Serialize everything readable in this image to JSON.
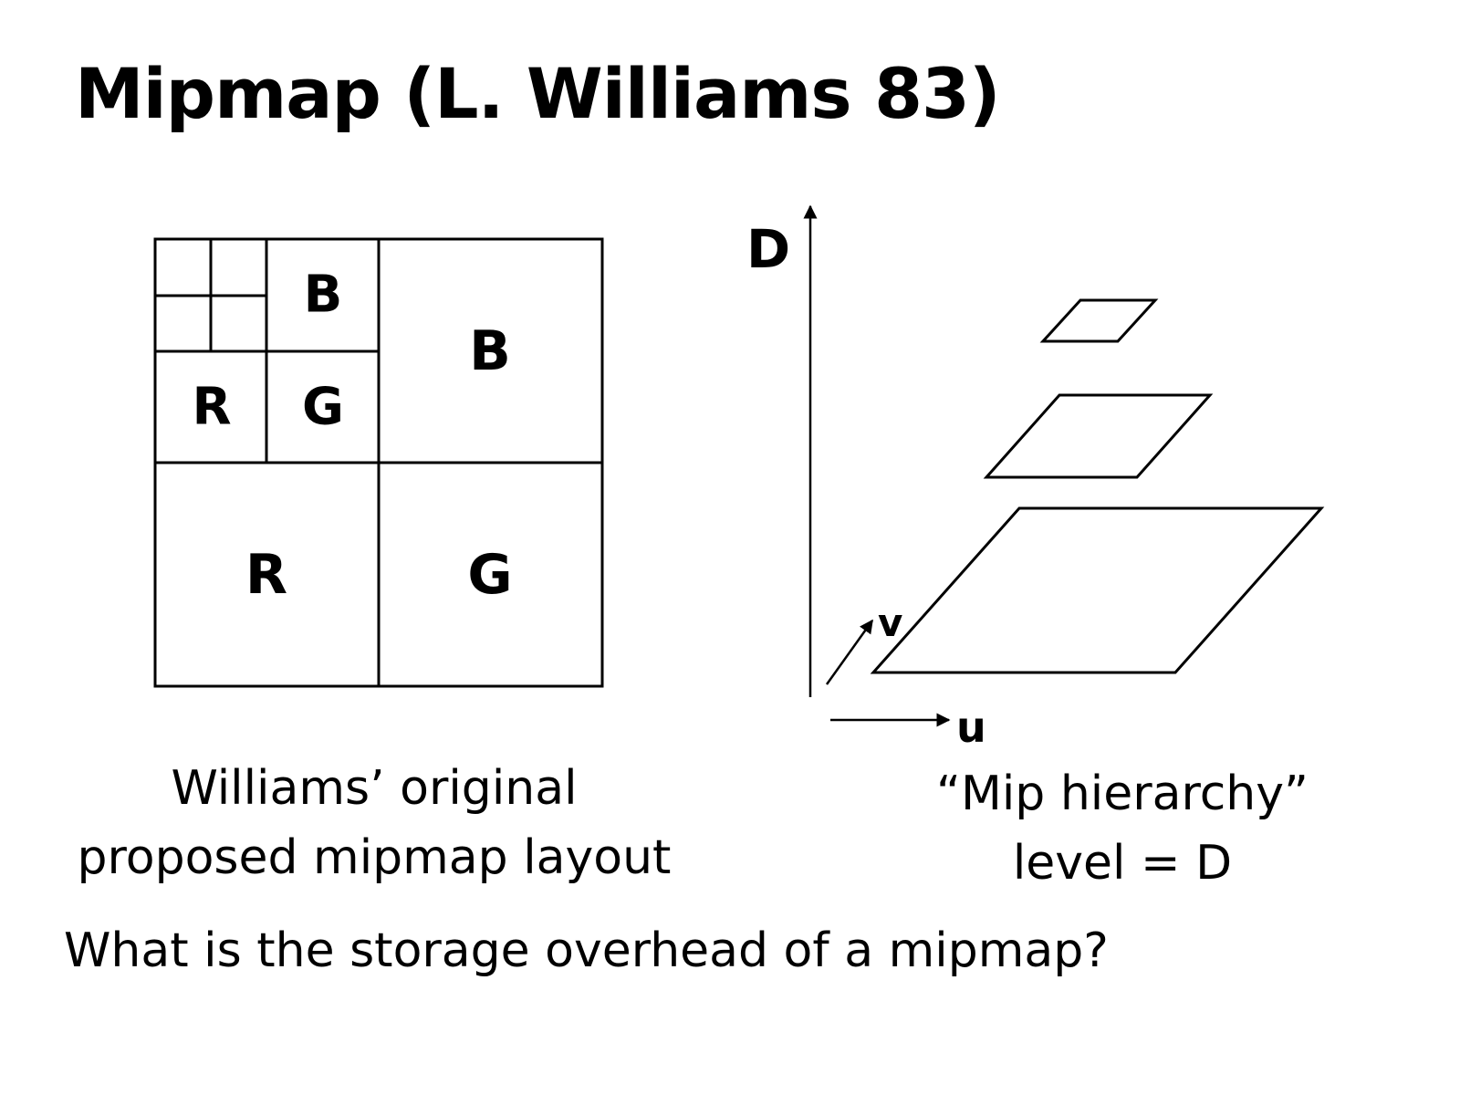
{
  "slide": {
    "title": "Mipmap (L. Williams 83)",
    "question": "What is the storage overhead of a mipmap?"
  },
  "layout_diagram": {
    "caption_line1": "Williams’ original",
    "caption_line2": "proposed mipmap layout",
    "level1_labels": {
      "r": "R",
      "g": "G",
      "b": "B"
    },
    "level2_labels": {
      "r": "R",
      "g": "G",
      "b": "B"
    }
  },
  "hierarchy_diagram": {
    "caption_line1": "“Mip hierarchy”",
    "caption_line2": "level = D",
    "axis_d": "D",
    "axis_u": "u",
    "axis_v": "v",
    "level_count": 3
  },
  "colors": {
    "ink": "#000000",
    "background": "#ffffff"
  }
}
